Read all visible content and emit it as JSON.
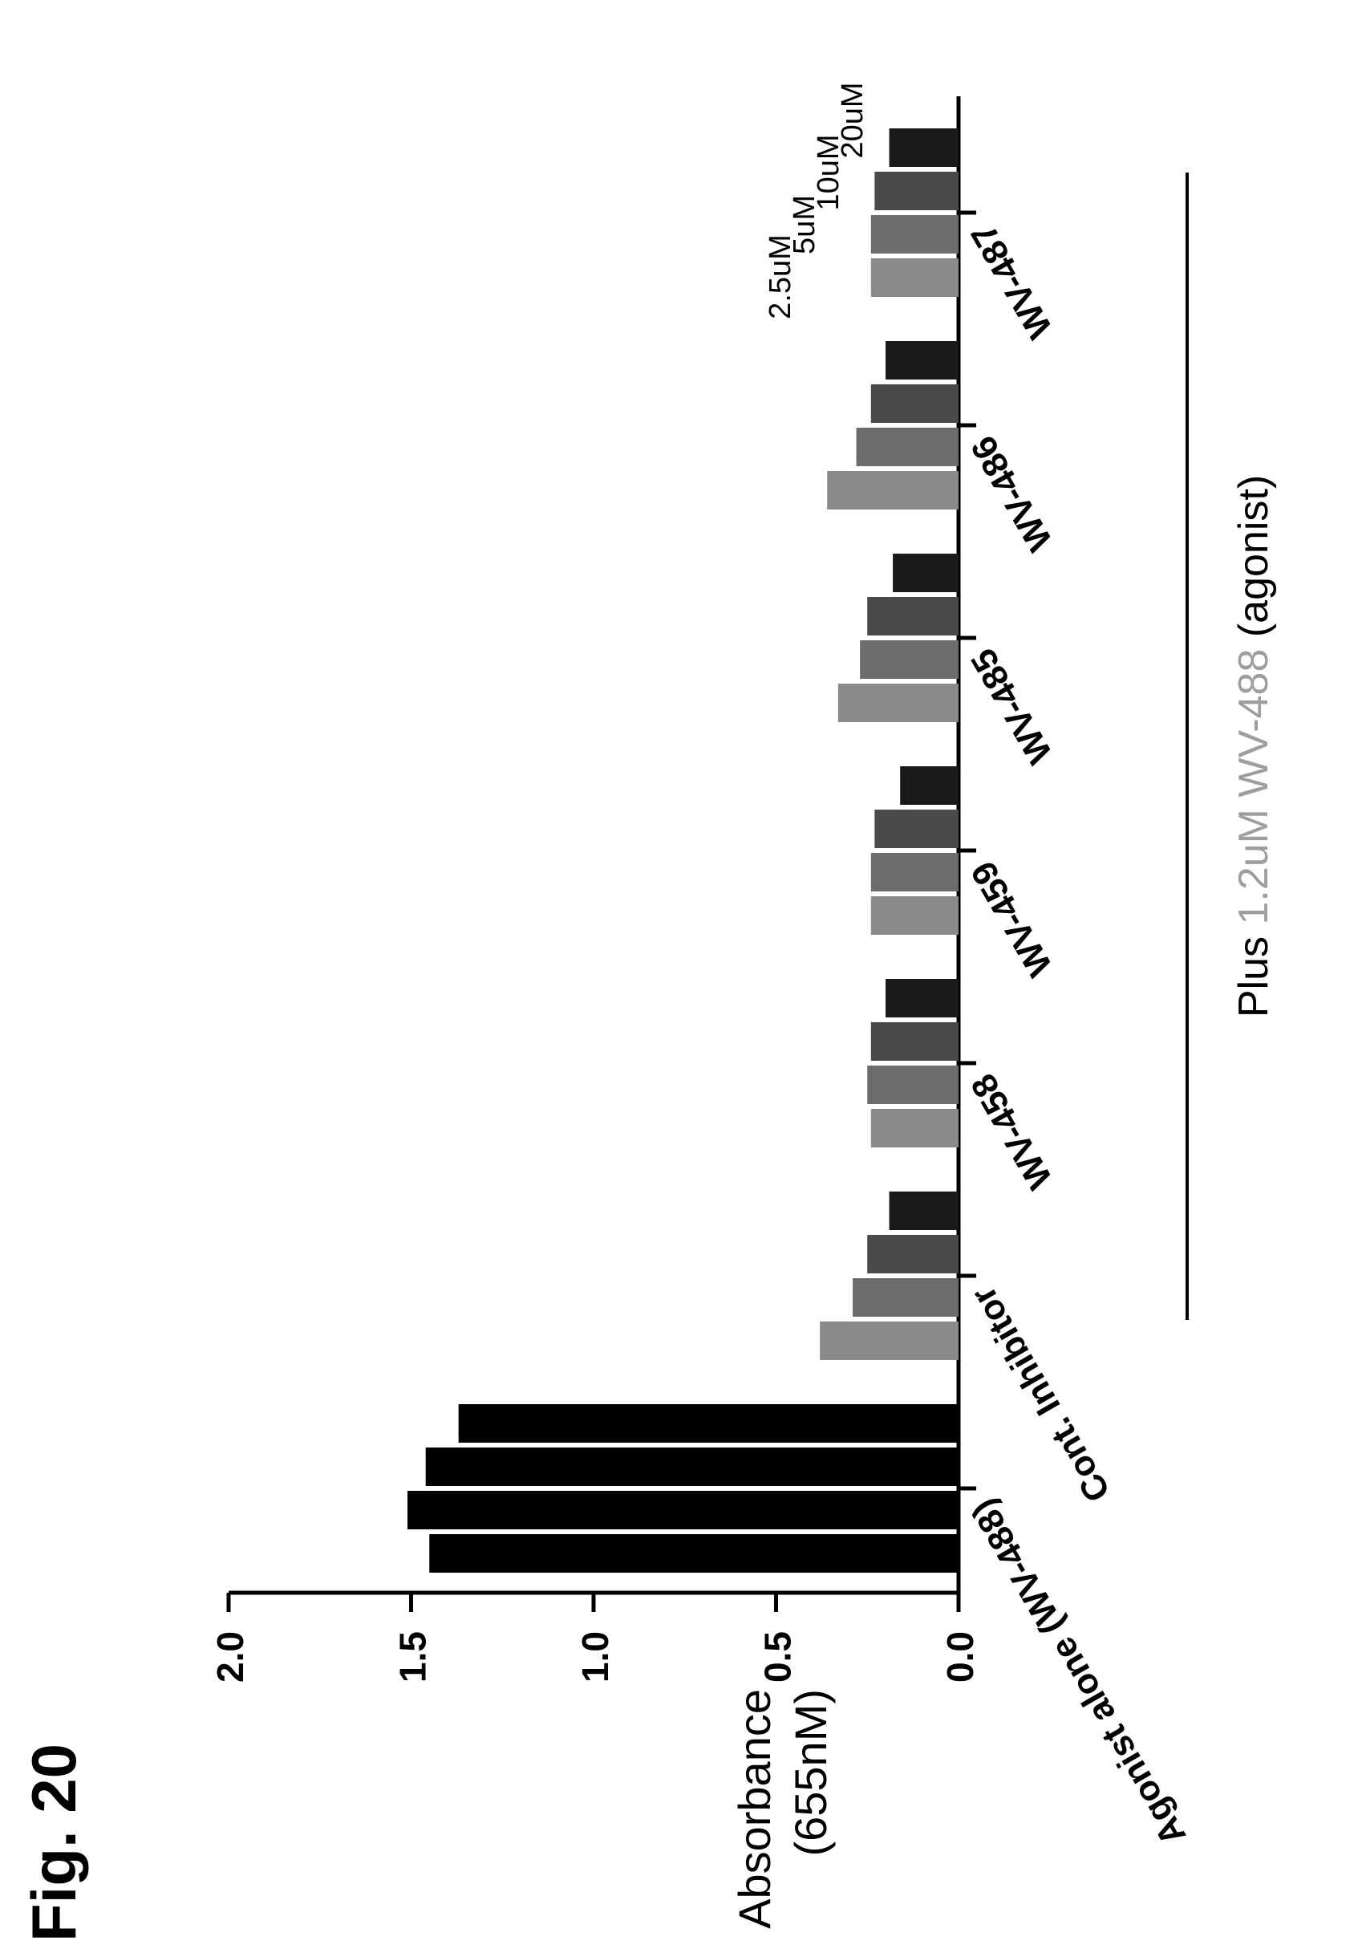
{
  "figure_label": "Fig. 20",
  "chart_data": {
    "type": "bar",
    "orientation": "rotated 90 degrees counter-clockwise",
    "ylabel_lines": [
      "Absorbance",
      "(655nM)"
    ],
    "ylim": [
      0,
      2.0
    ],
    "yticks": [
      "0.0",
      "0.5",
      "1.0",
      "1.5",
      "2.0"
    ],
    "categories": [
      "Agonist alone (WV-488)",
      "Cont. Inhibitor",
      "WV-458",
      "WV-459",
      "WV-485",
      "WV-486",
      "WV-487"
    ],
    "series": [
      {
        "name": "2.5uM",
        "values": [
          1.45,
          0.38,
          0.24,
          0.24,
          0.33,
          0.36,
          0.24
        ]
      },
      {
        "name": "5uM",
        "values": [
          1.51,
          0.29,
          0.25,
          0.24,
          0.27,
          0.28,
          0.24
        ]
      },
      {
        "name": "10uM",
        "values": [
          1.46,
          0.25,
          0.24,
          0.23,
          0.25,
          0.24,
          0.23
        ]
      },
      {
        "name": "20uM",
        "values": [
          1.37,
          0.19,
          0.2,
          0.16,
          0.18,
          0.2,
          0.19
        ]
      }
    ],
    "colors": {
      "agonist": "#000000",
      "s1": "#8a8a8a",
      "s2": "#6c6c6c",
      "s3": "#4a4a4a",
      "s4": "#1a1a1a"
    },
    "group_annotation": {
      "prefix": "Plus",
      "highlight": "1.2uM WV-488",
      "suffix": "(agonist)",
      "highlight_color": "#9e9e9e"
    }
  }
}
